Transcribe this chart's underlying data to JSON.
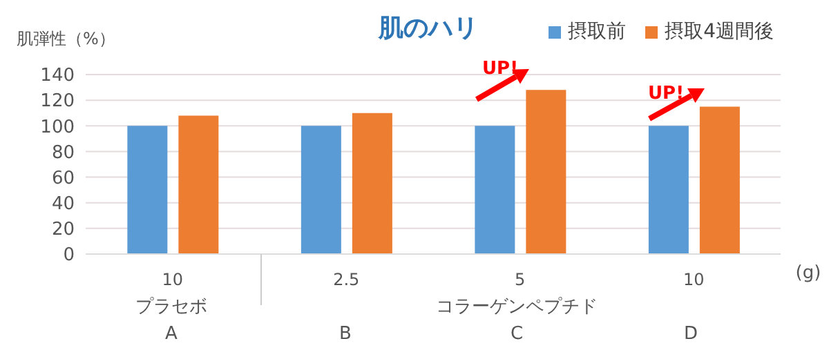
{
  "chart_data": {
    "type": "bar",
    "title": "肌のハリ",
    "ylabel": "肌弾性（%）",
    "categories": [
      "10",
      "2.5",
      "5",
      "10"
    ],
    "series": [
      {
        "name": "摂取前",
        "color": "#5b9bd5",
        "values": [
          100,
          100,
          100,
          100
        ]
      },
      {
        "name": "摂取4週間後",
        "color": "#ed7d31",
        "values": [
          108,
          110,
          128,
          115
        ]
      }
    ],
    "ylim": [
      0,
      140
    ],
    "yticks": [
      0,
      20,
      40,
      60,
      80,
      100,
      120,
      140
    ],
    "grid": "y",
    "legend": "top right",
    "annotations": [
      "UP!",
      "UP!",
      "プラセボ",
      "コラーゲンペプチド",
      "A",
      "B",
      "C",
      "D",
      "(g)"
    ]
  }
}
